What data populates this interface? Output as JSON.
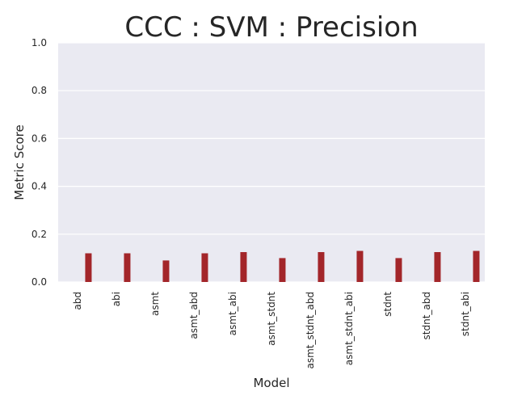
{
  "chart_data": {
    "type": "bar",
    "title": "CCC : SVM : Precision",
    "xlabel": "Model",
    "ylabel": "Metric Score",
    "ylim": [
      0,
      1.0
    ],
    "yticks": [
      "0.0",
      "0.2",
      "0.4",
      "0.6",
      "0.8",
      "1.0"
    ],
    "categories": [
      "abd",
      "abi",
      "asmt",
      "asmt_abd",
      "asmt_abi",
      "asmt_stdnt",
      "asmt_stdnt_abd",
      "asmt_stdnt_abi",
      "stdnt",
      "stdnt_abd",
      "stdnt_abi"
    ],
    "values": [
      0.12,
      0.12,
      0.09,
      0.12,
      0.125,
      0.1,
      0.125,
      0.13,
      0.1,
      0.125,
      0.13
    ],
    "grid": true,
    "bar_color": "#a3262a",
    "plot_background": "#eaeaf2"
  }
}
